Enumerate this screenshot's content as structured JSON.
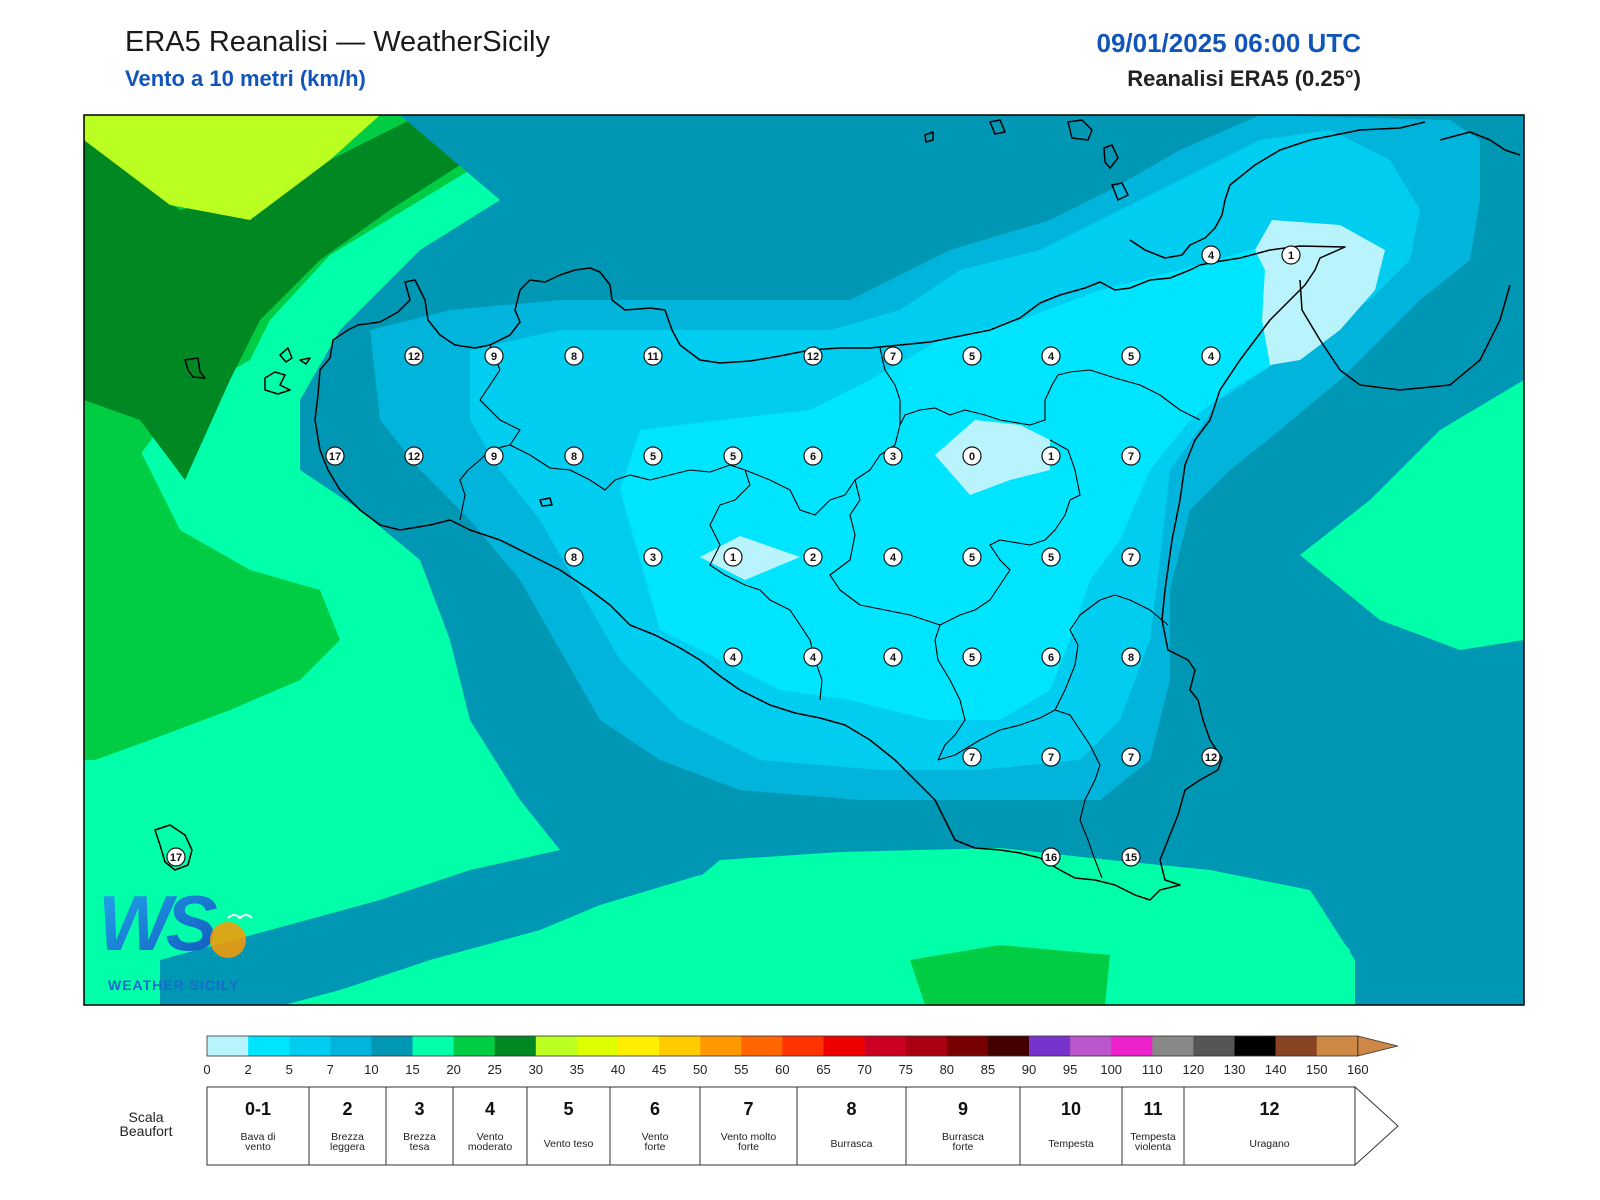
{
  "header": {
    "title": "ERA5 Reanalisi — WeatherSicily",
    "subtitle": "Vento a 10 metri (km/h)",
    "datetime": "09/01/2025 06:00 UTC",
    "source": "Reanalisi ERA5 (0.25°)"
  },
  "logo": {
    "letters": "WS",
    "text": "WEATHER SICILY"
  },
  "stations": [
    {
      "v": "12"
    },
    {
      "v": "9"
    },
    {
      "v": "8"
    },
    {
      "v": "11"
    },
    {
      "v": "12"
    },
    {
      "v": "7"
    },
    {
      "v": "5"
    },
    {
      "v": "4"
    },
    {
      "v": "5"
    },
    {
      "v": "4"
    },
    {
      "v": "17"
    },
    {
      "v": "12"
    },
    {
      "v": "9"
    },
    {
      "v": "8"
    },
    {
      "v": "5"
    },
    {
      "v": "5"
    },
    {
      "v": "6"
    },
    {
      "v": "3"
    },
    {
      "v": "0"
    },
    {
      "v": "1"
    },
    {
      "v": "7"
    },
    {
      "v": "8"
    },
    {
      "v": "3"
    },
    {
      "v": "1"
    },
    {
      "v": "2"
    },
    {
      "v": "4"
    },
    {
      "v": "5"
    },
    {
      "v": "5"
    },
    {
      "v": "7"
    },
    {
      "v": "4"
    },
    {
      "v": "4"
    },
    {
      "v": "4"
    },
    {
      "v": "5"
    },
    {
      "v": "6"
    },
    {
      "v": "8"
    },
    {
      "v": "7"
    },
    {
      "v": "7"
    },
    {
      "v": "7"
    },
    {
      "v": "12"
    },
    {
      "v": "16"
    },
    {
      "v": "15"
    },
    {
      "v": "4"
    },
    {
      "v": "1"
    },
    {
      "v": "17"
    }
  ],
  "color_scale": {
    "colors": [
      "#b9f4fd",
      "#00e5ff",
      "#00cdf0",
      "#00b4dc",
      "#0097b4",
      "#00ffa8",
      "#00cc44",
      "#008822",
      "#bbff22",
      "#ddff00",
      "#ffee00",
      "#ffcc00",
      "#ff9900",
      "#ff6600",
      "#ff3300",
      "#ee0000",
      "#cc0022",
      "#aa0011",
      "#770000",
      "#440000",
      "#7733cc",
      "#bb55cc",
      "#ee22cc",
      "#888888",
      "#555555",
      "#000000",
      "#884422",
      "#cc8844"
    ],
    "ticks": [
      "0",
      "2",
      "5",
      "7",
      "10",
      "15",
      "20",
      "25",
      "30",
      "35",
      "40",
      "45",
      "50",
      "55",
      "60",
      "65",
      "70",
      "75",
      "80",
      "85",
      "90",
      "95",
      "100",
      "110",
      "120",
      "130",
      "140",
      "150",
      "160"
    ]
  },
  "beaufort": {
    "label": "Scala Beaufort",
    "classes": [
      {
        "num": "0-1",
        "desc": [
          "Bava di",
          "vento"
        ]
      },
      {
        "num": "2",
        "desc": [
          "Brezza",
          "leggera"
        ]
      },
      {
        "num": "3",
        "desc": [
          "Brezza",
          "tesa"
        ]
      },
      {
        "num": "4",
        "desc": [
          "Vento",
          "moderato"
        ]
      },
      {
        "num": "5",
        "desc": [
          "Vento teso"
        ]
      },
      {
        "num": "6",
        "desc": [
          "Vento",
          "forte"
        ]
      },
      {
        "num": "7",
        "desc": [
          "Vento molto",
          "forte"
        ]
      },
      {
        "num": "8",
        "desc": [
          "Burrasca"
        ]
      },
      {
        "num": "9",
        "desc": [
          "Burrasca",
          "forte"
        ]
      },
      {
        "num": "10",
        "desc": [
          "Tempesta"
        ]
      },
      {
        "num": "11",
        "desc": [
          "Tempesta",
          "violenta"
        ]
      },
      {
        "num": "12",
        "desc": [
          "Uragano"
        ]
      }
    ]
  }
}
